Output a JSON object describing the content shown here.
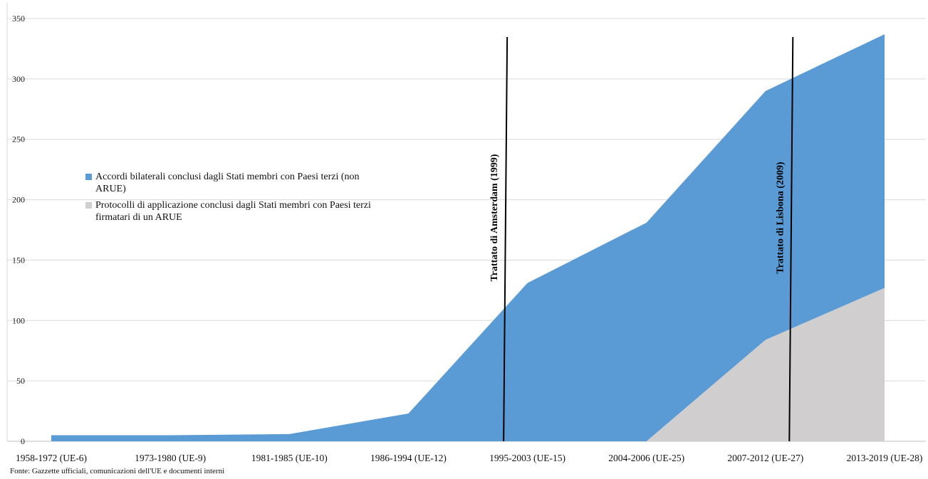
{
  "chart_data": {
    "type": "area",
    "stacked": true,
    "categories": [
      "1958-1972 (UE-6)",
      "1973-1980 (UE-9)",
      "1981-1985 (UE-10)",
      "1986-1994 (UE-12)",
      "1995-2003 (UE-15)",
      "2004-2006 (UE-25)",
      "2007-2012 (UE-27)",
      "2013-2019 (UE-28)"
    ],
    "series": [
      {
        "name": "Accordi bilaterali conclusi dagli Stati membri con Paesi terzi (non ARUE)",
        "values": [
          5,
          5,
          6,
          23,
          131,
          181,
          206,
          210
        ],
        "color": "#5b9bd5"
      },
      {
        "name": "Protocolli di applicazione conclusi dagli Stati membri con Paesi terzi firmatari di un ARUE",
        "values": [
          0,
          0,
          0,
          0,
          0,
          0,
          84,
          127
        ],
        "color": "#d0cece"
      }
    ],
    "ylim": [
      0,
      350
    ],
    "yticks": [
      0,
      50,
      100,
      150,
      200,
      250,
      300,
      350
    ],
    "grid": true,
    "legend_position": "left",
    "annotations": [
      {
        "text": "Trattato di Amsterdam (1999)",
        "category_index": 4,
        "offset": -0.2
      },
      {
        "text": "Trattato di Lisbona (2009)",
        "category_index": 6,
        "offset": 0.2
      }
    ]
  },
  "source": "Fonte: Gazzette ufficiali, comunicazioni dell'UE e documenti interni"
}
